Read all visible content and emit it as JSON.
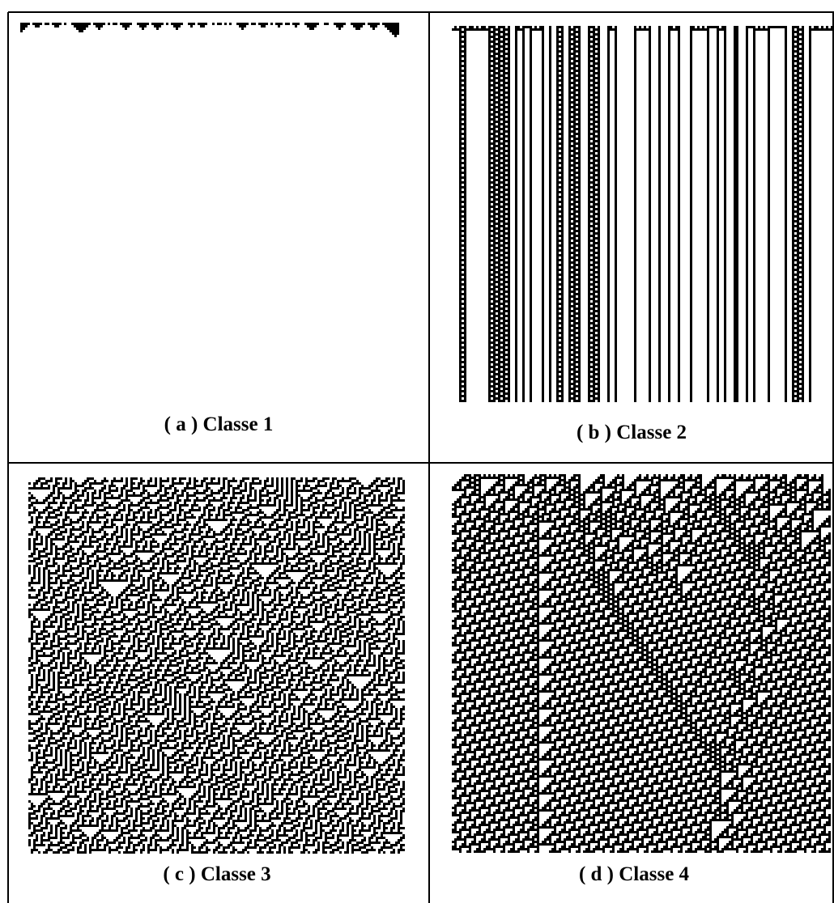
{
  "panels": [
    {
      "caption": "( a ) Classe 1"
    },
    {
      "caption": "( b ) Classe 2"
    },
    {
      "caption": "( c ) Classe 3"
    },
    {
      "caption": "( d ) Classe 4"
    }
  ]
}
